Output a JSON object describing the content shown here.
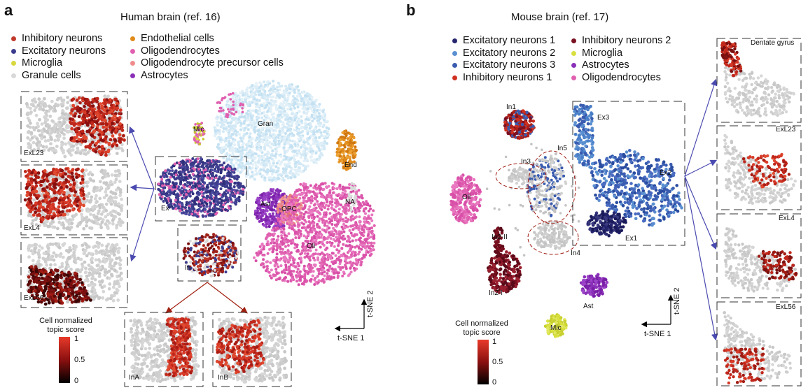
{
  "panel_a": {
    "letter": "a",
    "title": "Human brain (ref. 16)",
    "legend": [
      {
        "label": "Inhibitory neurons",
        "color": "#c0392b"
      },
      {
        "label": "Excitatory neurons",
        "color": "#3c3c8c"
      },
      {
        "label": "Microglia",
        "color": "#d8d840"
      },
      {
        "label": "Granule cells",
        "color": "#d8d8d8"
      },
      {
        "label": "Endothelial cells",
        "color": "#e08a1a"
      },
      {
        "label": "Oligodendrocytes",
        "color": "#e060b0"
      },
      {
        "label": "Oligodendrocyte precursor cells",
        "color": "#f08c8c"
      },
      {
        "label": "Astrocytes",
        "color": "#8a30b8"
      }
    ],
    "cluster_labels": {
      "mic": "Mic",
      "gran": "Gran",
      "end": "End",
      "ex": "Ex",
      "ast": "Ast",
      "opc": "OPC",
      "na": "NA",
      "oli": "Oli",
      "in": "In"
    },
    "insets": {
      "exl23": "ExL23",
      "exl4": "ExL4",
      "exl56": "ExL56",
      "ina": "InA",
      "inb": "InB"
    },
    "colorbar": {
      "title_line1": "Cell normalized",
      "title_line2": "topic score",
      "ticks": [
        "1",
        "0.5",
        "0"
      ]
    },
    "axes": {
      "x": "t-SNE 1",
      "y": "t-SNE 2"
    }
  },
  "panel_b": {
    "letter": "b",
    "title": "Mouse brain (ref. 17)",
    "legend": [
      {
        "label": "Excitatory neurons 1",
        "color": "#25256e"
      },
      {
        "label": "Excitatory neurons 2",
        "color": "#5a8fd0"
      },
      {
        "label": "Excitatory neurons 3",
        "color": "#3a5cb0"
      },
      {
        "label": "Inhibitory neurons 1",
        "color": "#d03020"
      },
      {
        "label": "Inhibitory neurons 2",
        "color": "#7a1020"
      },
      {
        "label": "Microglia",
        "color": "#d8e040"
      },
      {
        "label": "Astrocytes",
        "color": "#8a30b8"
      },
      {
        "label": "Oligodendrocytes",
        "color": "#e060b0"
      }
    ],
    "cluster_labels": {
      "in1": "In1",
      "ex3": "Ex3",
      "in5": "In5",
      "in3": "In3",
      "ex2": "Ex2",
      "oli": "Oli",
      "ex1": "Ex1",
      "in2ii": "In2-II",
      "in4": "In4",
      "in2i": "In2-I",
      "ast": "Ast",
      "mic": "Mic"
    },
    "insets": {
      "dg": "Dentate gyrus",
      "exl23": "ExL23",
      "exl4": "ExL4",
      "exl56": "ExL56"
    },
    "colorbar": {
      "title_line1": "Cell normalized",
      "title_line2": "topic score",
      "ticks": [
        "1",
        "0.5",
        "0"
      ]
    },
    "axes": {
      "x": "t-SNE 1",
      "y": "t-SNE 2"
    }
  }
}
